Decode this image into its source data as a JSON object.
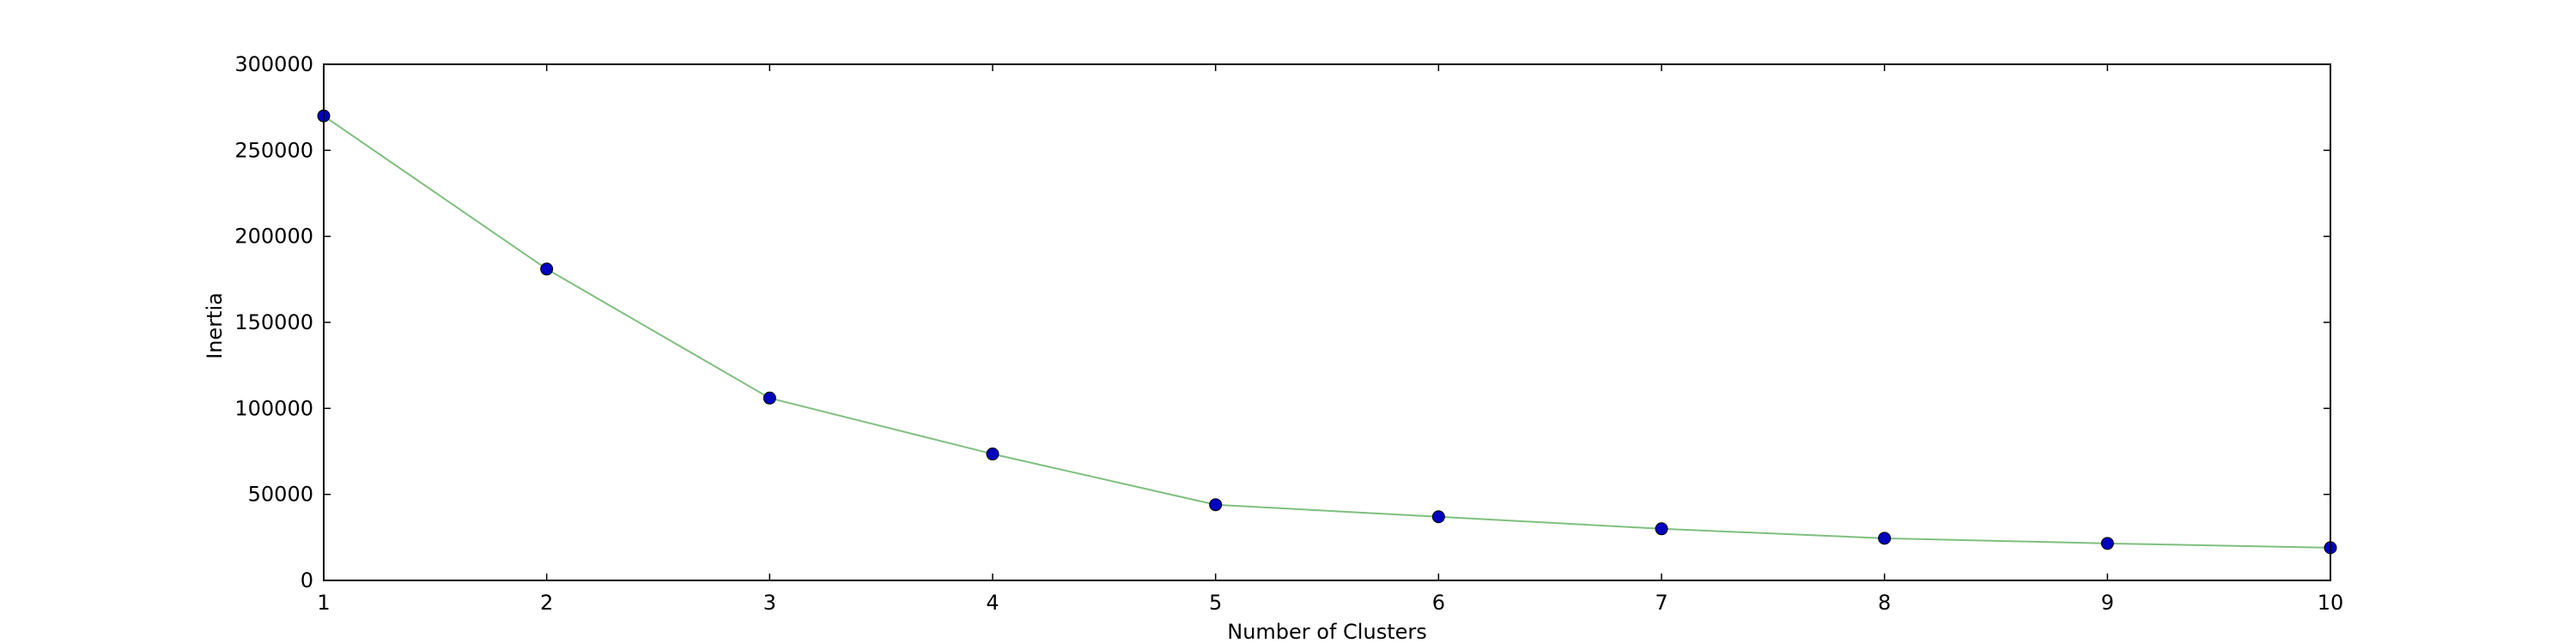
{
  "chart_data": {
    "type": "line",
    "title": "",
    "xlabel": "Number of Clusters",
    "ylabel": "Inertia",
    "xlim": [
      1,
      10
    ],
    "ylim": [
      0,
      300000
    ],
    "grid": false,
    "x_ticks": [
      "1",
      "2",
      "3",
      "4",
      "5",
      "6",
      "7",
      "8",
      "9",
      "10"
    ],
    "y_ticks": [
      "0",
      "50000",
      "100000",
      "150000",
      "200000",
      "250000",
      "300000"
    ],
    "line_color": "#7fbf7f",
    "marker_color": "#0000bf",
    "series": [
      {
        "x": [
          1,
          2,
          3,
          4,
          5,
          6,
          7,
          8,
          9,
          10
        ],
        "values": [
          270000,
          181000,
          106000,
          73500,
          44000,
          37000,
          30000,
          24500,
          21500,
          19000
        ]
      }
    ]
  }
}
